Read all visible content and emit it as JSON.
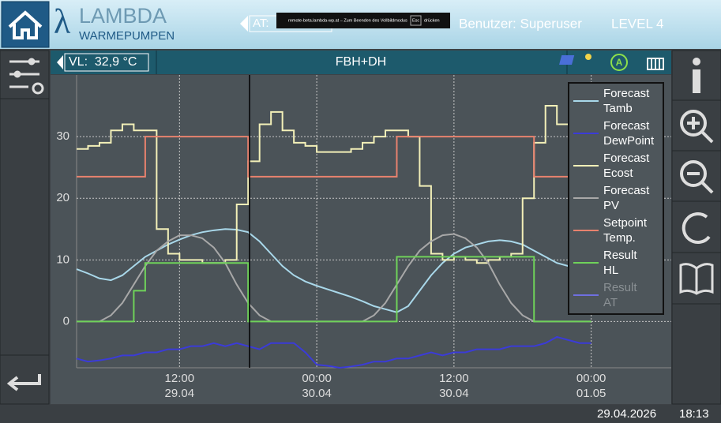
{
  "header": {
    "logo_symbol": "λ",
    "logo_main": "LAMBDA",
    "logo_sub": "WARMEPUMPEN",
    "at_label": "AT:",
    "notice": "remote-beta.lambda-wp.at – Zum Beenden des Vollbildmodus",
    "notice_key": "Esc",
    "notice_end": "drücken",
    "user": "Benutzer: Superuser",
    "level": "LEVEL 4"
  },
  "subbar": {
    "vl": "VL:  32,9 °C",
    "title": "FBH+DH"
  },
  "status": {
    "date": "29.04.2026",
    "time": "18:13"
  },
  "chart_data": {
    "type": "line",
    "x": [
      "29.04 03:00",
      "29.04 04:00",
      "29.04 05:00",
      "29.04 06:00",
      "29.04 07:00",
      "29.04 08:00",
      "29.04 09:00",
      "29.04 10:00",
      "29.04 11:00",
      "29.04 12:00",
      "29.04 13:00",
      "29.04 14:00",
      "29.04 15:00",
      "29.04 16:00",
      "29.04 17:00",
      "29.04 18:00",
      "29.04 19:00",
      "29.04 20:00",
      "29.04 21:00",
      "29.04 22:00",
      "29.04 23:00",
      "30.04 00:00",
      "30.04 01:00",
      "30.04 02:00",
      "30.04 03:00",
      "30.04 04:00",
      "30.04 05:00",
      "30.04 06:00",
      "30.04 07:00",
      "30.04 08:00",
      "30.04 09:00",
      "30.04 10:00",
      "30.04 11:00",
      "30.04 12:00",
      "30.04 13:00",
      "30.04 14:00",
      "30.04 15:00",
      "30.04 16:00",
      "30.04 17:00",
      "30.04 18:00",
      "30.04 19:00",
      "30.04 20:00",
      "30.04 21:00",
      "30.04 22:00",
      "30.04 23:00",
      "01.05 00:00"
    ],
    "xlim": [
      "29.04 03:00",
      "01.05 07:00"
    ],
    "xticks": [
      {
        "value": "29.04 12:00",
        "label": [
          "12:00",
          "29.04"
        ]
      },
      {
        "value": "30.04 00:00",
        "label": [
          "00:00",
          "30.04"
        ]
      },
      {
        "value": "30.04 12:00",
        "label": [
          "12:00",
          "30.04"
        ]
      },
      {
        "value": "01.05 00:00",
        "label": [
          "00:00",
          "01.05"
        ]
      }
    ],
    "ylim": [
      -7.5,
      40
    ],
    "yticks": [
      0,
      10,
      20,
      30
    ],
    "grid": true,
    "series": [
      {
        "name": "Forecast Tamb",
        "color": "#a9d8ea",
        "step": false,
        "values": [
          8.5,
          7.8,
          7.0,
          6.7,
          7.5,
          9,
          10.5,
          11.5,
          12.5,
          13.3,
          14,
          14.5,
          14.8,
          15,
          14.9,
          14.5,
          13,
          11,
          9,
          7.5,
          6.5,
          5.8,
          5.2,
          4.6,
          4,
          3.3,
          2.5,
          2,
          1.5,
          2.5,
          5,
          7.5,
          9.5,
          11,
          12,
          12.5,
          13,
          13.2,
          13,
          12.5,
          11.5,
          10.5,
          9.5,
          9,
          8.5,
          8.2
        ]
      },
      {
        "name": "Forecast DewPoint",
        "color": "#3b3bd8",
        "step": false,
        "values": [
          -6,
          -6.5,
          -6.3,
          -6,
          -5.5,
          -5.5,
          -5,
          -5,
          -4.5,
          -4.5,
          -4,
          -4,
          -3.5,
          -4,
          -3.5,
          -4,
          -4.5,
          -3.5,
          -3.5,
          -3.5,
          -5,
          -7,
          -7.2,
          -7.5,
          -7.3,
          -7,
          -6.5,
          -6.5,
          -6,
          -6,
          -5.5,
          -5,
          -5.5,
          -5,
          -5,
          -4.5,
          -4.5,
          -4.5,
          -4,
          -4,
          -4,
          -3.5,
          -2.5,
          -3,
          -3.5,
          -3.5
        ]
      },
      {
        "name": "Forecast Ecost",
        "color": "#f3f0b8",
        "step": true,
        "values": [
          28,
          28.5,
          29,
          31,
          32,
          31,
          31,
          15,
          11,
          10,
          10,
          9.5,
          9.5,
          10,
          19,
          26,
          32,
          34,
          31,
          29,
          28.5,
          27.5,
          27.5,
          27.5,
          28,
          29,
          30,
          31,
          31,
          30,
          22,
          11,
          10,
          10.5,
          10,
          9.5,
          10,
          10.5,
          11,
          20,
          29,
          35,
          32,
          32,
          29,
          28
        ]
      },
      {
        "name": "Forecast PV",
        "color": "#a8a8a8",
        "step": false,
        "values": [
          0,
          0,
          0,
          1,
          3,
          6,
          9,
          11.5,
          13,
          14,
          14,
          13.5,
          12,
          9.5,
          6,
          3,
          1,
          0,
          0,
          0,
          0,
          0,
          0,
          0,
          0,
          0,
          1,
          3,
          6,
          9,
          11.5,
          13,
          14,
          14.2,
          13.5,
          12,
          9.5,
          6,
          3,
          1,
          0,
          0,
          0,
          0,
          0,
          0
        ]
      },
      {
        "name": "Setpoint Temp.",
        "color": "#e8826e",
        "step": true,
        "values": [
          23.5,
          23.5,
          23.5,
          23.5,
          23.5,
          23.5,
          30,
          30,
          30,
          30,
          30,
          30,
          30,
          30,
          30,
          23.5,
          23.5,
          23.5,
          23.5,
          23.5,
          23.5,
          23.5,
          23.5,
          23.5,
          23.5,
          23.5,
          23.5,
          23.5,
          30,
          30,
          30,
          30,
          30,
          30,
          30,
          30,
          30,
          30,
          30,
          30,
          23.5,
          23.5,
          23.5,
          23.5,
          23.5,
          23.5
        ]
      },
      {
        "name": "Result HL",
        "color": "#6fd25a",
        "step": true,
        "values": [
          0,
          0,
          0,
          0,
          0,
          5,
          9.5,
          9.5,
          9.5,
          9.5,
          9.5,
          9.5,
          9.5,
          9.5,
          9.5,
          0,
          0,
          0,
          0,
          0,
          0,
          0,
          0,
          0,
          0,
          0,
          0,
          0,
          10.5,
          10.5,
          10.5,
          10.5,
          10.5,
          10.5,
          10.5,
          10.5,
          10.5,
          10.5,
          10.5,
          10.5,
          0,
          0,
          0,
          0,
          0,
          0
        ]
      },
      {
        "name": "Result AT",
        "color": "#6f6fe0",
        "visible": false
      }
    ]
  }
}
